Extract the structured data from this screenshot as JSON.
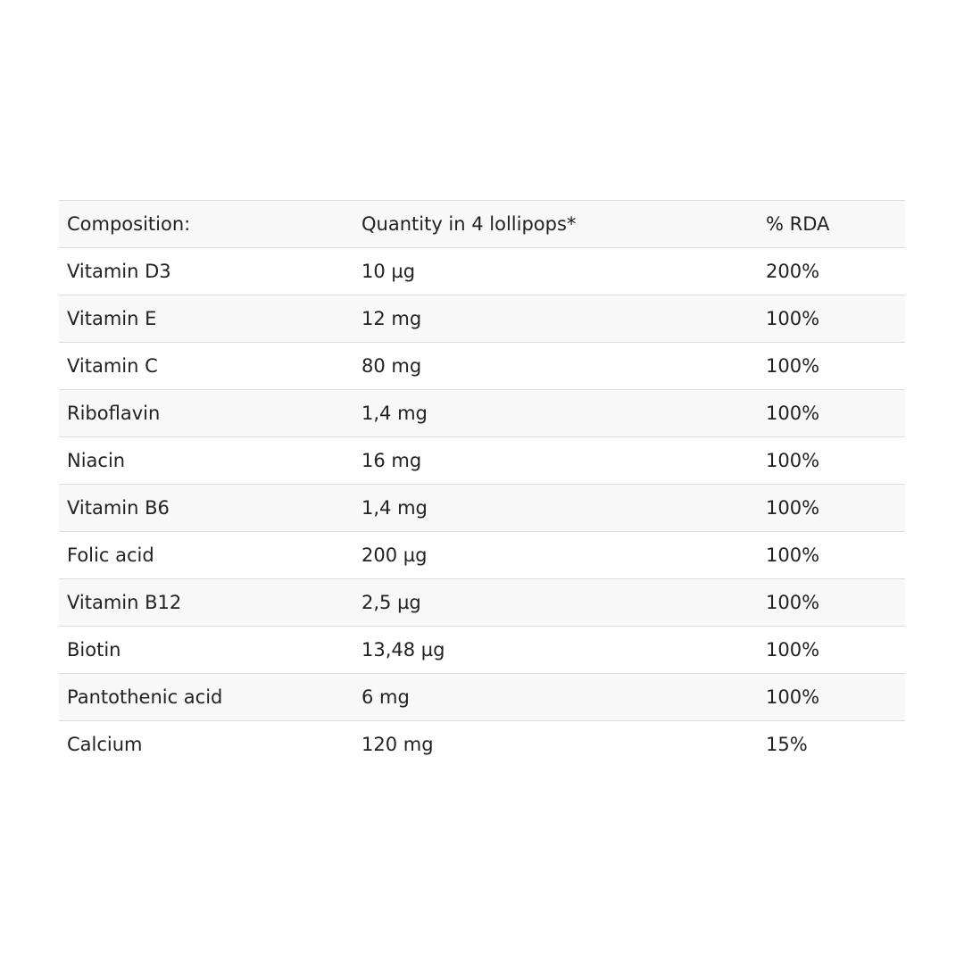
{
  "table": {
    "headers": [
      "Composition:",
      "Quantity in 4 lollipops*",
      "% RDA"
    ],
    "rows": [
      [
        "Vitamin D3",
        "10  µg",
        "200%"
      ],
      [
        "Vitamin E",
        "12 mg",
        "100%"
      ],
      [
        "Vitamin C",
        "80 mg",
        "100%"
      ],
      [
        "Riboflavin",
        "1,4 mg",
        "100%"
      ],
      [
        "Niacin",
        "16 mg",
        "100%"
      ],
      [
        "Vitamin B6",
        "1,4 mg",
        "100%"
      ],
      [
        "Folic acid",
        "200 µg",
        "100%"
      ],
      [
        "Vitamin B12",
        "2,5 µg",
        "100%"
      ],
      [
        "Biotin",
        "13,48 µg",
        "100%"
      ],
      [
        "Pantothenic acid",
        "6 mg",
        "100%"
      ],
      [
        "Calcium",
        "120 mg",
        "15%"
      ]
    ]
  }
}
